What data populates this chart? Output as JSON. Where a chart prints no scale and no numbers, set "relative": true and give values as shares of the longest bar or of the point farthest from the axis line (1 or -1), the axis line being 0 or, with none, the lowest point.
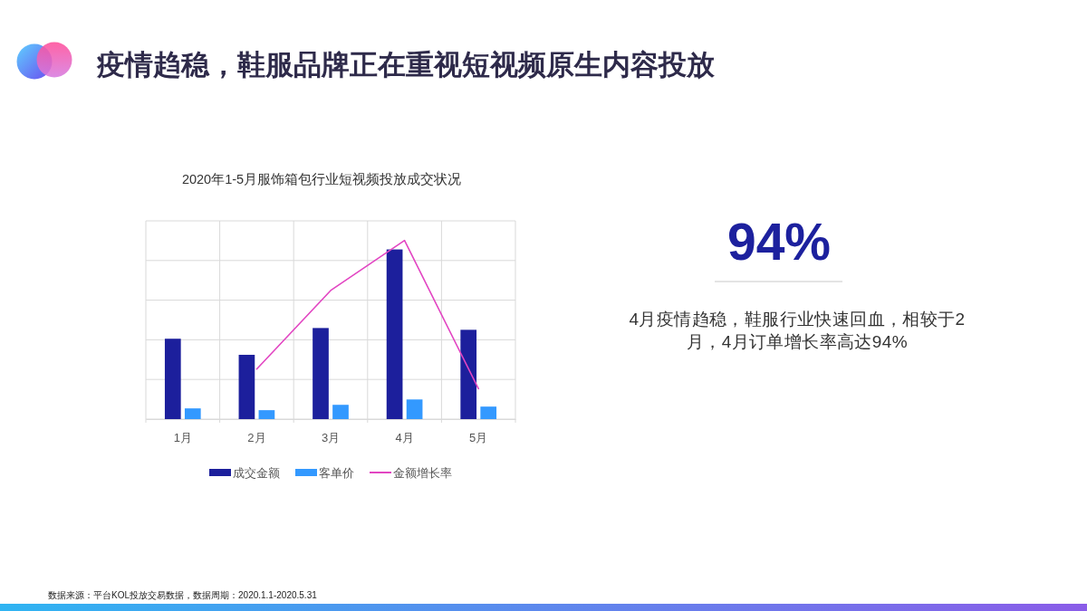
{
  "chart_data": {
    "type": "bar",
    "title": "疫情趋稳，鞋服品牌正在重视短视频原生内容投放",
    "subtitle": "2020年1-5月服饰箱包行业短视频投放成交状况",
    "categories": [
      "1月",
      "2月",
      "3月",
      "4月",
      "5月"
    ],
    "relative": true,
    "series": [
      {
        "name": "成交金额",
        "color": "#1c1f9c",
        "values": [
          0.45,
          0.36,
          0.51,
          0.95,
          0.5
        ]
      },
      {
        "name": "客单价",
        "color": "#3399ff",
        "values": [
          0.06,
          0.05,
          0.08,
          0.11,
          0.07
        ]
      },
      {
        "name": "金额增长率",
        "type": "line",
        "color": "#e245c2",
        "values": [
          null,
          0.28,
          0.72,
          1,
          0.17
        ]
      }
    ],
    "grid": true,
    "legend": "bottom",
    "annotations": [
      "94%",
      "4月疫情趋稳，鞋服行业快速回血，相较于2月，4月订单增长率高达94%",
      "数据来源：平台KOL投放交易数据，数据周期：2020.1.1-2020.5.31"
    ]
  }
}
